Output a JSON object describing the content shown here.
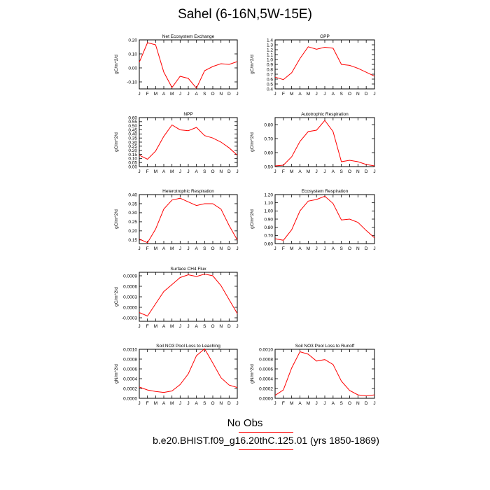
{
  "page": {
    "title": "Sahel (6-16N,5W-15E)",
    "no_obs": "No Obs",
    "case": "b.e20.BHIST.f09_g16.20thC.125.01 (yrs 1850-1869)",
    "line_color": "#ff0000"
  },
  "chart_data": [
    {
      "type": "line",
      "title": "Net Ecosystem Exchange",
      "ylabel": "gC/m^2/d",
      "categories": [
        "J",
        "F",
        "M",
        "A",
        "M",
        "J",
        "J",
        "A",
        "S",
        "O",
        "N",
        "D",
        "J"
      ],
      "ylim": [
        -0.15,
        0.2
      ],
      "yticks": [
        -0.1,
        0.0,
        0.1,
        0.2
      ],
      "ytick_labels": [
        "-0.10",
        "0.00",
        "0.10",
        "0.20"
      ],
      "values": [
        0.04,
        0.18,
        0.165,
        -0.03,
        -0.14,
        -0.06,
        -0.075,
        -0.145,
        -0.02,
        0.01,
        0.03,
        0.025,
        0.045
      ]
    },
    {
      "type": "line",
      "title": "GPP",
      "ylabel": "gC/m^2/d",
      "categories": [
        "J",
        "F",
        "M",
        "A",
        "M",
        "J",
        "J",
        "A",
        "S",
        "O",
        "N",
        "D",
        "J"
      ],
      "ylim": [
        0.4,
        1.4
      ],
      "yticks": [
        0.4,
        0.5,
        0.6,
        0.7,
        0.8,
        0.9,
        1.0,
        1.1,
        1.2,
        1.3,
        1.4
      ],
      "ytick_labels": [
        "0.4",
        "0.5",
        "0.6",
        "0.7",
        "0.8",
        "0.9",
        "1.0",
        "1.1",
        "1.2",
        "1.3",
        "1.4"
      ],
      "values": [
        0.64,
        0.59,
        0.73,
        1.02,
        1.26,
        1.21,
        1.25,
        1.23,
        0.9,
        0.88,
        0.82,
        0.74,
        0.66
      ]
    },
    {
      "type": "line",
      "title": "NPP",
      "ylabel": "gC/m^2/d",
      "categories": [
        "J",
        "F",
        "M",
        "A",
        "M",
        "J",
        "J",
        "A",
        "S",
        "O",
        "N",
        "D",
        "J"
      ],
      "ylim": [
        0.0,
        0.6
      ],
      "yticks": [
        0.0,
        0.05,
        0.1,
        0.15,
        0.2,
        0.25,
        0.3,
        0.35,
        0.4,
        0.45,
        0.5,
        0.55,
        0.6
      ],
      "ytick_labels": [
        "0.00",
        "0.05",
        "0.10",
        "0.15",
        "0.20",
        "0.25",
        "0.30",
        "0.35",
        "0.40",
        "0.45",
        "0.50",
        "0.55",
        "0.60"
      ],
      "values": [
        0.14,
        0.09,
        0.19,
        0.37,
        0.51,
        0.45,
        0.44,
        0.48,
        0.38,
        0.35,
        0.3,
        0.23,
        0.14
      ]
    },
    {
      "type": "line",
      "title": "Autotrophic Respiration",
      "ylabel": "gC/m^2/d",
      "categories": [
        "J",
        "F",
        "M",
        "A",
        "M",
        "J",
        "J",
        "A",
        "S",
        "O",
        "N",
        "D",
        "J"
      ],
      "ylim": [
        0.5,
        0.85
      ],
      "yticks": [
        0.5,
        0.6,
        0.7,
        0.8
      ],
      "ytick_labels": [
        "0.50",
        "0.60",
        "0.70",
        "0.80"
      ],
      "values": [
        0.505,
        0.51,
        0.57,
        0.68,
        0.75,
        0.76,
        0.83,
        0.75,
        0.535,
        0.545,
        0.535,
        0.515,
        0.505
      ]
    },
    {
      "type": "line",
      "title": "Heterotrophic Respiration",
      "ylabel": "gC/m^2/d",
      "categories": [
        "J",
        "F",
        "M",
        "A",
        "M",
        "J",
        "J",
        "A",
        "S",
        "O",
        "N",
        "D",
        "J"
      ],
      "ylim": [
        0.13,
        0.4
      ],
      "yticks": [
        0.15,
        0.2,
        0.25,
        0.3,
        0.35,
        0.4
      ],
      "ytick_labels": [
        "0.15",
        "0.20",
        "0.25",
        "0.30",
        "0.35",
        "0.40"
      ],
      "values": [
        0.155,
        0.135,
        0.21,
        0.32,
        0.37,
        0.38,
        0.36,
        0.34,
        0.35,
        0.35,
        0.32,
        0.23,
        0.15
      ]
    },
    {
      "type": "line",
      "title": "Ecosystem Respiration",
      "ylabel": "gC/m^2/d",
      "categories": [
        "J",
        "F",
        "M",
        "A",
        "M",
        "J",
        "J",
        "A",
        "S",
        "O",
        "N",
        "D",
        "J"
      ],
      "ylim": [
        0.6,
        1.2
      ],
      "yticks": [
        0.6,
        0.7,
        0.8,
        0.9,
        1.0,
        1.1,
        1.2
      ],
      "ytick_labels": [
        "0.60",
        "0.70",
        "0.80",
        "0.90",
        "1.00",
        "1.10",
        "1.20"
      ],
      "values": [
        0.66,
        0.64,
        0.77,
        1.0,
        1.12,
        1.14,
        1.18,
        1.09,
        0.89,
        0.9,
        0.86,
        0.76,
        0.67
      ]
    },
    {
      "type": "line",
      "title": "Surface CH4 Flux",
      "ylabel": "gC/m^2/d",
      "categories": [
        "J",
        "F",
        "M",
        "A",
        "M",
        "J",
        "J",
        "A",
        "S",
        "O",
        "N",
        "D",
        "J"
      ],
      "ylim": [
        -0.0004,
        0.001
      ],
      "yticks": [
        -0.0003,
        0.0,
        0.0003,
        0.0006,
        0.0009
      ],
      "ytick_labels": [
        "-0.0003",
        "0.0000",
        "0.0003",
        "0.0006",
        "0.0009"
      ],
      "values": [
        -0.00015,
        -0.00025,
        0.0001,
        0.00045,
        0.00065,
        0.00085,
        0.00093,
        0.00088,
        0.00095,
        0.0009,
        0.00062,
        0.00022,
        -0.00018
      ]
    },
    {
      "type": "line",
      "title": "Soil NO3 Pool Loss to Leaching",
      "ylabel": "gN/m^2/d",
      "categories": [
        "J",
        "F",
        "M",
        "A",
        "M",
        "J",
        "J",
        "A",
        "S",
        "O",
        "N",
        "D",
        "J"
      ],
      "ylim": [
        0.0,
        0.001
      ],
      "yticks": [
        0.0,
        0.0002,
        0.0004,
        0.0006,
        0.0008,
        0.001
      ],
      "ytick_labels": [
        "0.0000",
        "0.0002",
        "0.0004",
        "0.0006",
        "0.0008",
        "0.0010"
      ],
      "values": [
        0.00023,
        0.00017,
        0.00014,
        0.00012,
        0.00015,
        0.00028,
        0.0005,
        0.00087,
        0.00101,
        0.00072,
        0.00042,
        0.00027,
        0.00022
      ]
    },
    {
      "type": "line",
      "title": "Soil NO3 Pool Loss to Runoff",
      "ylabel": "gN/m^2/d",
      "categories": [
        "J",
        "F",
        "M",
        "A",
        "M",
        "J",
        "J",
        "A",
        "S",
        "O",
        "N",
        "D",
        "J"
      ],
      "ylim": [
        0.0,
        0.001
      ],
      "yticks": [
        0.0,
        0.0002,
        0.0004,
        0.0006,
        0.0008,
        0.001
      ],
      "ytick_labels": [
        "0.0000",
        "0.0002",
        "0.0004",
        "0.0006",
        "0.0008",
        "0.0010"
      ],
      "values": [
        6e-05,
        0.00017,
        0.00062,
        0.00095,
        0.0009,
        0.00076,
        0.00079,
        0.00069,
        0.00035,
        0.00016,
        7e-05,
        5e-05,
        7e-05
      ]
    }
  ]
}
